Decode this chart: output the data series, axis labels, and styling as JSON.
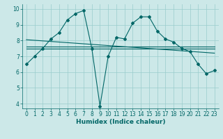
{
  "xlabel": "Humidex (Indice chaleur)",
  "bg_color": "#cce8e8",
  "grid_color": "#99cccc",
  "line_color": "#006666",
  "xlim": [
    -0.5,
    23.5
  ],
  "ylim": [
    3.7,
    10.3
  ],
  "yticks": [
    4,
    5,
    6,
    7,
    8,
    9,
    10
  ],
  "xticks": [
    0,
    1,
    2,
    3,
    4,
    5,
    6,
    7,
    8,
    9,
    10,
    11,
    12,
    13,
    14,
    15,
    16,
    17,
    18,
    19,
    20,
    21,
    22,
    23
  ],
  "line1": {
    "x": [
      0,
      1,
      2,
      3,
      4,
      5,
      6,
      7,
      8,
      9,
      10,
      11,
      12,
      13,
      14,
      15,
      16,
      17,
      18,
      19,
      20,
      21,
      22,
      23
    ],
    "y": [
      6.5,
      7.0,
      7.5,
      8.1,
      8.5,
      9.3,
      9.7,
      9.9,
      7.5,
      3.85,
      7.0,
      8.2,
      8.1,
      9.1,
      9.5,
      9.5,
      8.6,
      8.1,
      7.9,
      7.5,
      7.3,
      6.5,
      5.9,
      6.1
    ]
  },
  "line2": {
    "x": [
      0,
      23
    ],
    "y": [
      7.6,
      7.6
    ]
  },
  "line3": {
    "x": [
      0,
      23
    ],
    "y": [
      7.5,
      7.5
    ]
  },
  "line4": {
    "x": [
      0,
      23
    ],
    "y": [
      8.05,
      7.2
    ]
  }
}
